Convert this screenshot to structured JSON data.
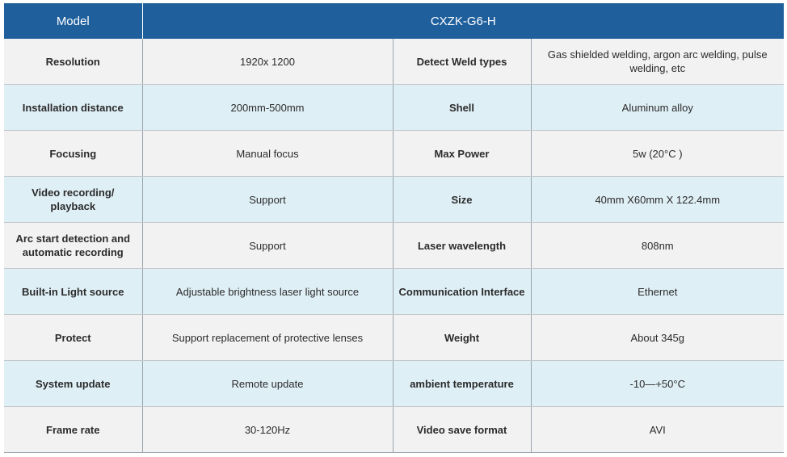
{
  "header": {
    "label": "Model",
    "value": "CXZK-G6-H"
  },
  "rows": [
    {
      "l1": "Resolution",
      "v1": "1920x 1200",
      "l2": "Detect Weld types",
      "v2": "Gas shielded welding, argon arc welding, pulse welding, etc"
    },
    {
      "l1": "Installation distance",
      "v1": "200mm-500mm",
      "l2": "Shell",
      "v2": "Aluminum alloy"
    },
    {
      "l1": "Focusing",
      "v1": "Manual focus",
      "l2": "Max Power",
      "v2": "5w (20°C )"
    },
    {
      "l1": "Video recording/ playback",
      "v1": "Support",
      "l2": "Size",
      "v2": "40mm X60mm X 122.4mm"
    },
    {
      "l1": "Arc start detection and automatic recording",
      "v1": "Support",
      "l2": "Laser wavelength",
      "v2": "808nm"
    },
    {
      "l1": "Built-in Light source",
      "v1": "Adjustable brightness laser light source",
      "l2": "Communication Interface",
      "v2": "Ethernet"
    },
    {
      "l1": "Protect",
      "v1": "Support replacement of protective lenses",
      "l2": "Weight",
      "v2": "About 345g"
    },
    {
      "l1": "System update",
      "v1": "Remote update",
      "l2": "ambient temperature",
      "v2": "-10—+50°C"
    },
    {
      "l1": "Frame rate",
      "v1": "30-120Hz",
      "l2": "Video save format",
      "v2": "AVI"
    }
  ],
  "colors": {
    "header_bg": "#1f5f9c",
    "row_gray": "#f2f2f2",
    "row_blue": "#dfeff6"
  }
}
